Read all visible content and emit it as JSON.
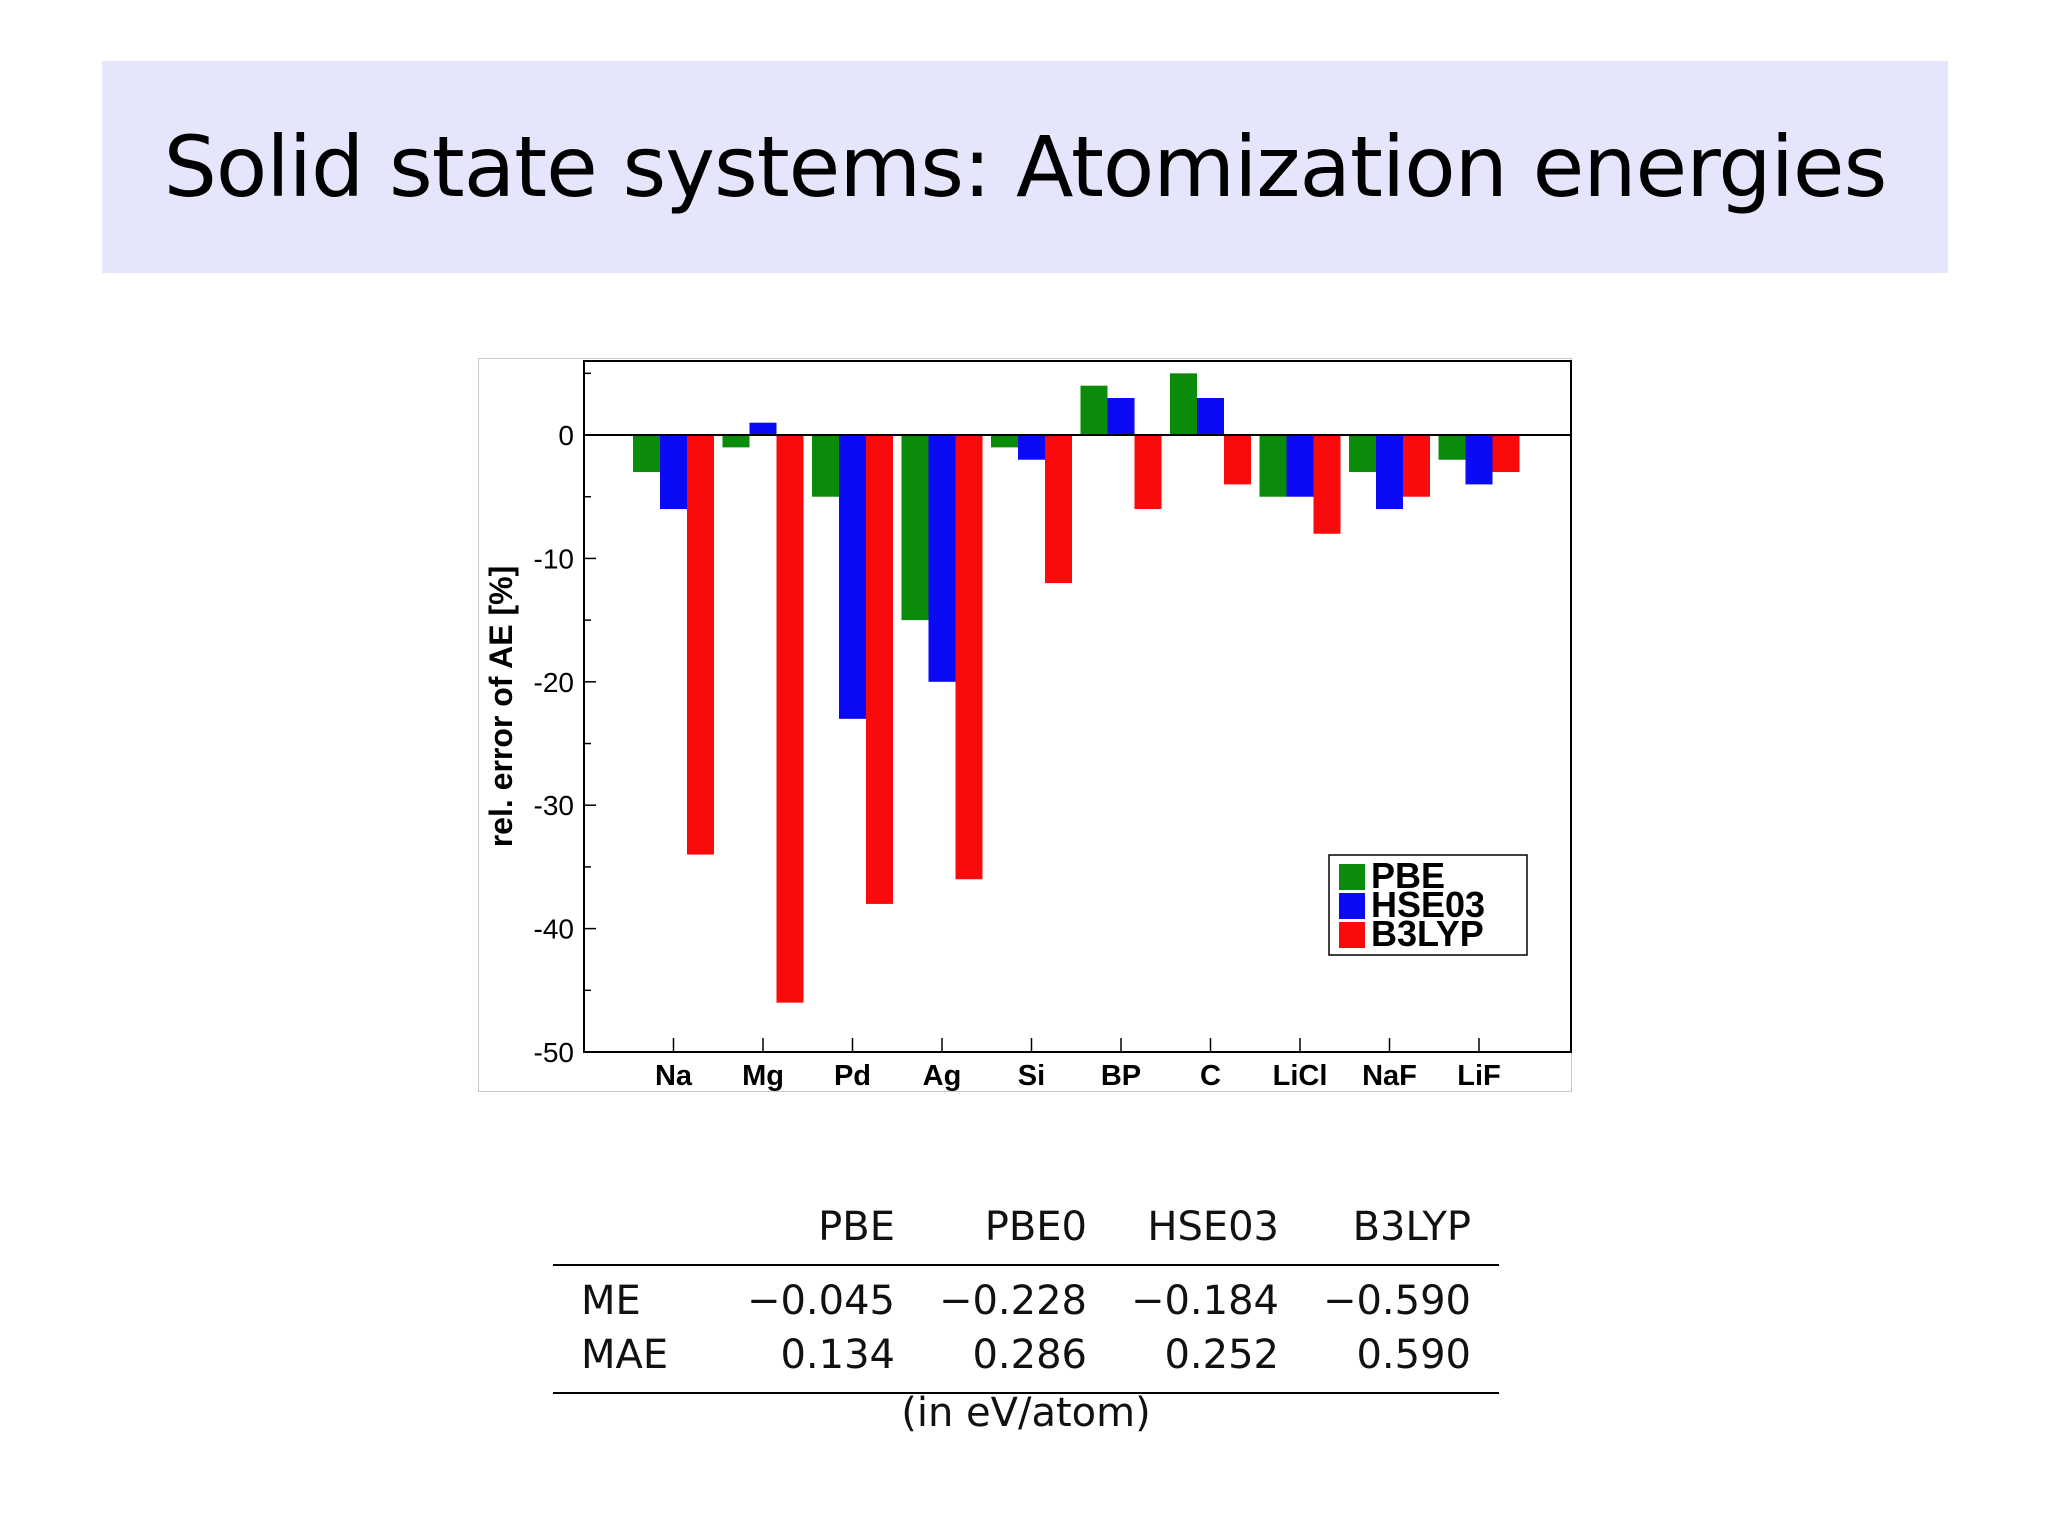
{
  "slide": {
    "title": "Solid state systems: Atomization energies"
  },
  "chart_data": {
    "type": "bar",
    "title": "",
    "xlabel": "",
    "ylabel": "rel. error of AE [%]",
    "ylim": [
      -50,
      6
    ],
    "yticks": [
      0,
      -10,
      -20,
      -30,
      -40,
      -50
    ],
    "grid": false,
    "legend_position": "lower-right",
    "categories": [
      "Na",
      "Mg",
      "Pd",
      "Ag",
      "Si",
      "BP",
      "C",
      "LiCl",
      "NaF",
      "LiF"
    ],
    "series": [
      {
        "name": "PBE",
        "color": "#0a8c0a",
        "values": [
          -3,
          -1,
          -5,
          -15,
          -1,
          4,
          5,
          -5,
          -3,
          -2
        ]
      },
      {
        "name": "HSE03",
        "color": "#0a0af5",
        "values": [
          -6,
          1,
          -23,
          -20,
          -2,
          3,
          3,
          -5,
          -6,
          -4
        ]
      },
      {
        "name": "B3LYP",
        "color": "#fa0a0a",
        "values": [
          -34,
          -46,
          -38,
          -36,
          -12,
          -6,
          -4,
          -8,
          -5,
          -3
        ]
      }
    ]
  },
  "table": {
    "columns": [
      "PBE",
      "PBE0",
      "HSE03",
      "B3LYP"
    ],
    "rows": [
      {
        "label": "ME",
        "values": [
          "−0.045",
          "−0.228",
          "−0.184",
          "−0.590"
        ]
      },
      {
        "label": "MAE",
        "values": [
          "0.134",
          "0.286",
          "0.252",
          "0.590"
        ]
      }
    ],
    "note": "(in eV/atom)"
  }
}
